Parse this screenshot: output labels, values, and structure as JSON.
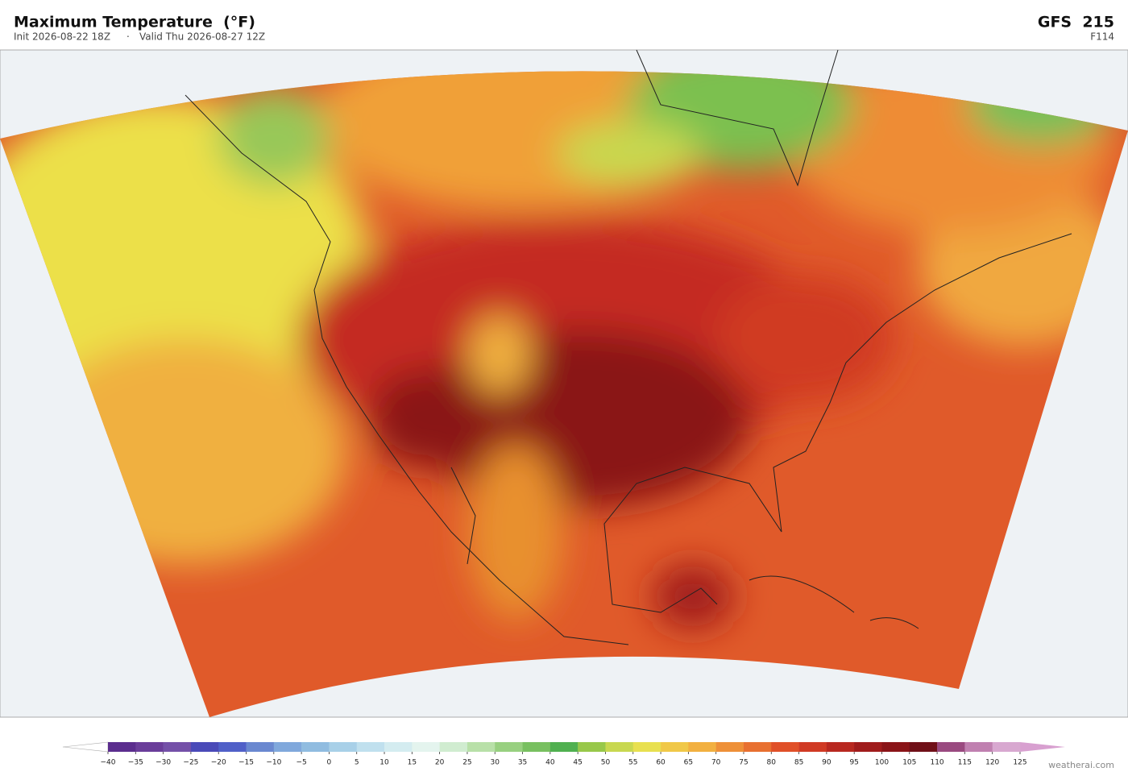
{
  "header": {
    "title": "Maximum Temperature  (°F)",
    "init": "Init 2026-08-22 18Z",
    "separator": "·",
    "valid": "Valid Thu 2026-08-27 12Z",
    "model": "GFS  215",
    "forecast_hour": "F114"
  },
  "colorbar": {
    "ticks": [
      {
        "value": -40,
        "label": "−40"
      },
      {
        "value": -35,
        "label": "−35"
      },
      {
        "value": -30,
        "label": "−30"
      },
      {
        "value": -25,
        "label": "−25"
      },
      {
        "value": -20,
        "label": "−20"
      },
      {
        "value": -15,
        "label": "−15"
      },
      {
        "value": -10,
        "label": "−10"
      },
      {
        "value": -5,
        "label": "−5"
      },
      0,
      5,
      10,
      15,
      20,
      25,
      30,
      35,
      40,
      45,
      50,
      55,
      60,
      65,
      70,
      75,
      80,
      85,
      90,
      95,
      100,
      105,
      110,
      115,
      120,
      125
    ],
    "colors": [
      "#5b2d8e",
      "#6a3d9a",
      "#7450a8",
      "#4a4ab8",
      "#5060c8",
      "#6a88d0",
      "#80a8dc",
      "#90bce0",
      "#a8d0e8",
      "#c0e0ee",
      "#d4ecf0",
      "#e4f4ee",
      "#d0ecd0",
      "#b8e0a8",
      "#98d080",
      "#78c060",
      "#50b050",
      "#98c84a",
      "#c8d850",
      "#e8e050",
      "#f0c848",
      "#f2b040",
      "#ee9038",
      "#e87030",
      "#e05028",
      "#d03a24",
      "#b82820",
      "#a01c1c",
      "#8a1418",
      "#701018",
      "#9a4a80",
      "#c080b0",
      "#d8a8d0"
    ],
    "under_color": "#ffffff",
    "over_color": "#d8a0d0"
  },
  "credit": "weatherai.com"
}
